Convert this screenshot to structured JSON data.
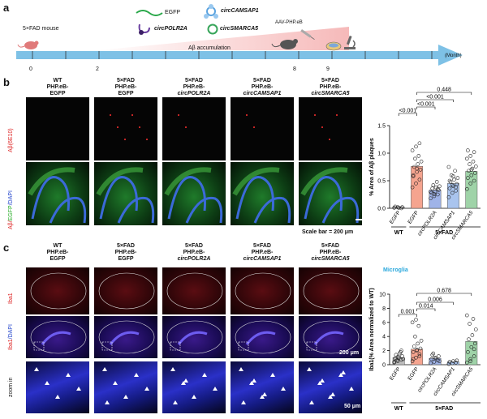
{
  "panel_labels": {
    "a": "a",
    "b": "b",
    "c": "c"
  },
  "timeline": {
    "model": "5×FAD mouse",
    "accumulation": "Aβ accumulation",
    "aav": "AAV-PHP.eB",
    "month_unit": "(Month)",
    "ticks": [
      {
        "value": "0"
      },
      {
        "value": "2"
      },
      {
        "value": "8"
      },
      {
        "value": "9"
      }
    ],
    "legend": [
      {
        "label": "EGFP",
        "italic": false
      },
      {
        "label": "circCAMSAP1",
        "italic": true
      },
      {
        "label": "circPOLR2A",
        "italic": true
      },
      {
        "label": "circSMARCA5",
        "italic": true
      }
    ],
    "colors": {
      "arrow": "#7ec1e6",
      "gradient_end": "#f6b9b9",
      "egfp": "#2aa84a",
      "camsap": "#5ba3df",
      "polr": "#6a3fa0",
      "smarca": "#37a55a"
    }
  },
  "groups_b": [
    {
      "l1": "WT",
      "l2": "PHP.eB-",
      "l3": "EGFP",
      "italic": false
    },
    {
      "l1": "5×FAD",
      "l2": "PHP.eB-",
      "l3": "EGFP",
      "italic": false
    },
    {
      "l1": "5×FAD",
      "l2": "PHP.eB-",
      "l3": "circPOLR2A",
      "italic": true
    },
    {
      "l1": "5×FAD",
      "l2": "PHP.eB-",
      "l3": "circCAMSAP1",
      "italic": true
    },
    {
      "l1": "5×FAD",
      "l2": "PHP.eB-",
      "l3": "circSMARCA5",
      "italic": true
    }
  ],
  "rows_b": {
    "r1": "Aβ(6E10)",
    "r2_a": "Aβ/",
    "r2_b": "EGFP",
    "r2_c": "/DAPI"
  },
  "scale_b": "Scale bar = 200 μm",
  "rows_c": {
    "r1": "Iba1",
    "r2_a": "Iba1",
    "r2_b": "/DAPI",
    "r3": "zoom in"
  },
  "scale_c1": "200 μm",
  "scale_c2": "50 μm",
  "chart_b": {
    "ylabel": "% Area of Aβ plaques",
    "ylim": [
      0,
      1.5
    ],
    "yticks": [
      "0.0",
      "0.5",
      "1.0",
      "1.5"
    ],
    "categories": [
      "EGFP",
      "EGFP",
      "circPOLR2A",
      "circCAMSAP1",
      "circSMARCA5"
    ],
    "cat_italic": [
      false,
      false,
      true,
      true,
      true
    ],
    "means": [
      0.02,
      0.76,
      0.33,
      0.45,
      0.67
    ],
    "colors": [
      "#bdbdbd",
      "#f5a48f",
      "#9fb3e8",
      "#a9c4ee",
      "#9fd3a8"
    ],
    "points": [
      [
        0.01,
        0.02,
        0.0,
        0.03,
        0.01,
        0.02
      ],
      [
        0.38,
        0.45,
        0.52,
        0.6,
        0.66,
        0.7,
        0.75,
        0.8,
        0.85,
        0.9,
        0.95,
        1.05,
        1.12,
        1.18,
        0.58,
        0.72
      ],
      [
        0.18,
        0.22,
        0.25,
        0.28,
        0.3,
        0.33,
        0.36,
        0.38,
        0.4,
        0.42,
        0.48,
        0.3,
        0.26,
        0.35
      ],
      [
        0.2,
        0.28,
        0.32,
        0.36,
        0.4,
        0.44,
        0.48,
        0.52,
        0.55,
        0.6,
        0.68,
        0.75,
        0.42,
        0.38,
        0.5,
        0.58
      ],
      [
        0.35,
        0.45,
        0.5,
        0.55,
        0.6,
        0.64,
        0.68,
        0.72,
        0.76,
        0.8,
        0.85,
        0.9,
        0.95,
        1.02,
        1.05,
        0.7
      ]
    ],
    "comparisons": [
      {
        "from": 1,
        "to": 2,
        "label": "<0.001"
      },
      {
        "from": 1,
        "to": 3,
        "label": "<0.001"
      },
      {
        "from": 0,
        "to": 1,
        "label": "<0.001"
      },
      {
        "from": 1,
        "to": 4,
        "label": "0.448"
      }
    ],
    "group_wt": "WT",
    "group_fad": "5×FAD"
  },
  "chart_c": {
    "title": "Microglia",
    "ylabel": "Iba1(% Area normalized to WT)",
    "ylim": [
      0,
      10
    ],
    "yticks": [
      "0",
      "2",
      "4",
      "6",
      "8",
      "10"
    ],
    "categories": [
      "EGFP",
      "EGFP",
      "circPOLR2A",
      "circCAMSAP1",
      "circSMARCA5"
    ],
    "cat_italic": [
      false,
      false,
      true,
      true,
      true
    ],
    "means": [
      1.0,
      2.2,
      0.9,
      0.4,
      3.3
    ],
    "colors": [
      "#bdbdbd",
      "#f5a48f",
      "#9fb3e8",
      "#a9c4ee",
      "#9fd3a8"
    ],
    "points": [
      [
        0.3,
        0.5,
        0.7,
        0.9,
        1.0,
        1.2,
        1.4,
        1.6,
        0.8,
        0.6,
        1.8,
        0.4,
        1.1,
        2.0
      ],
      [
        0.5,
        1.0,
        1.5,
        1.8,
        2.0,
        2.3,
        2.6,
        3.0,
        3.4,
        4.0,
        5.5,
        6.0,
        6.4,
        1.2,
        0.8,
        2.1
      ],
      [
        0.2,
        0.4,
        0.6,
        0.8,
        1.0,
        1.2,
        1.4,
        0.9,
        0.5,
        1.6
      ],
      [
        0.1,
        0.2,
        0.3,
        0.4,
        0.5,
        0.6
      ],
      [
        0.3,
        0.8,
        1.2,
        1.8,
        2.5,
        3.0,
        3.6,
        4.2,
        5.0,
        5.8,
        6.5,
        7.0,
        0.5,
        2.2
      ]
    ],
    "comparisons": [
      {
        "from": 0,
        "to": 1,
        "label": "0.001"
      },
      {
        "from": 1,
        "to": 2,
        "label": "0.014"
      },
      {
        "from": 1,
        "to": 3,
        "label": "0.006"
      },
      {
        "from": 1,
        "to": 4,
        "label": "0.678"
      }
    ],
    "group_wt": "WT",
    "group_fad": "5×FAD"
  }
}
